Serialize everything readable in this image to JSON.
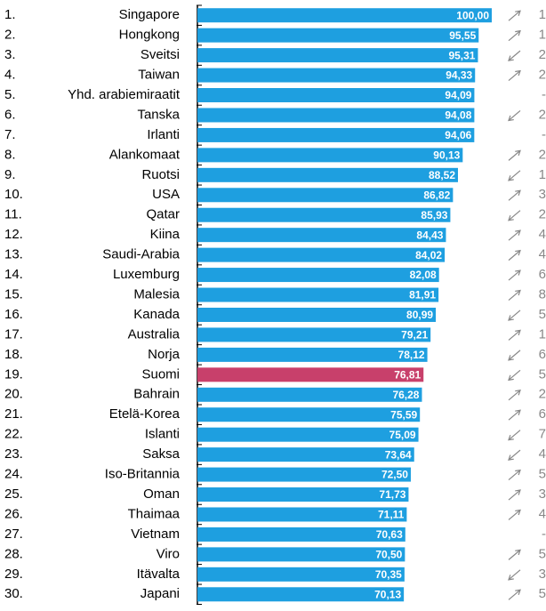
{
  "chart_data": {
    "type": "bar",
    "ranks": [
      "1.",
      "2.",
      "3.",
      "4.",
      "5.",
      "6.",
      "7.",
      "8.",
      "9.",
      "10.",
      "11.",
      "12.",
      "13.",
      "14.",
      "15.",
      "16.",
      "17.",
      "18.",
      "19.",
      "20.",
      "21.",
      "22.",
      "23.",
      "24.",
      "25.",
      "26.",
      "27.",
      "28.",
      "29.",
      "30."
    ],
    "categories": [
      "Singapore",
      "Hongkong",
      "Sveitsi",
      "Taiwan",
      "Yhd. arabiemiraatit",
      "Tanska",
      "Irlanti",
      "Alankomaat",
      "Ruotsi",
      "USA",
      "Qatar",
      "Kiina",
      "Saudi-Arabia",
      "Luxemburg",
      "Malesia",
      "Kanada",
      "Australia",
      "Norja",
      "Suomi",
      "Bahrain",
      "Etelä-Korea",
      "Islanti",
      "Saksa",
      "Iso-Britannia",
      "Oman",
      "Thaimaa",
      "Vietnam",
      "Viro",
      "Itävalta",
      "Japani"
    ],
    "values": [
      100.0,
      95.55,
      95.31,
      94.33,
      94.09,
      94.08,
      94.06,
      90.13,
      88.52,
      86.82,
      85.93,
      84.43,
      84.02,
      82.08,
      81.91,
      80.99,
      79.21,
      78.12,
      76.81,
      76.28,
      75.59,
      75.09,
      73.64,
      72.5,
      71.73,
      71.11,
      70.63,
      70.5,
      70.35,
      70.13
    ],
    "value_labels": [
      "100,00",
      "95,55",
      "95,31",
      "94,33",
      "94,09",
      "94,08",
      "94,06",
      "90,13",
      "88,52",
      "86,82",
      "85,93",
      "84,43",
      "84,02",
      "82,08",
      "81,91",
      "80,99",
      "79,21",
      "78,12",
      "76,81",
      "76,28",
      "75,59",
      "75,09",
      "73,64",
      "72,50",
      "71,73",
      "71,11",
      "70,63",
      "70,50",
      "70,35",
      "70,13"
    ],
    "colors": [
      "#1e9fe0",
      "#1e9fe0",
      "#1e9fe0",
      "#1e9fe0",
      "#1e9fe0",
      "#1e9fe0",
      "#1e9fe0",
      "#1e9fe0",
      "#1e9fe0",
      "#1e9fe0",
      "#1e9fe0",
      "#1e9fe0",
      "#1e9fe0",
      "#1e9fe0",
      "#1e9fe0",
      "#1e9fe0",
      "#1e9fe0",
      "#1e9fe0",
      "#c8406b",
      "#1e9fe0",
      "#1e9fe0",
      "#1e9fe0",
      "#1e9fe0",
      "#1e9fe0",
      "#1e9fe0",
      "#1e9fe0",
      "#1e9fe0",
      "#1e9fe0",
      "#1e9fe0",
      "#1e9fe0"
    ],
    "rank_change": [
      "1",
      "1",
      "2",
      "2",
      "-",
      "2",
      "-",
      "2",
      "1",
      "3",
      "2",
      "4",
      "4",
      "6",
      "8",
      "5",
      "1",
      "6",
      "5",
      "2",
      "6",
      "7",
      "4",
      "5",
      "3",
      "4",
      "-",
      "5",
      "3",
      "5"
    ],
    "rank_change_direction": [
      "up",
      "up",
      "down",
      "up",
      null,
      "down",
      null,
      "up",
      "down",
      "up",
      "down",
      "up",
      "up",
      "up",
      "up",
      "down",
      "up",
      "down",
      "down",
      "up",
      "up",
      "down",
      "down",
      "up",
      "up",
      "up",
      null,
      "up",
      "down",
      "up"
    ],
    "xlim": [
      0,
      100
    ]
  }
}
